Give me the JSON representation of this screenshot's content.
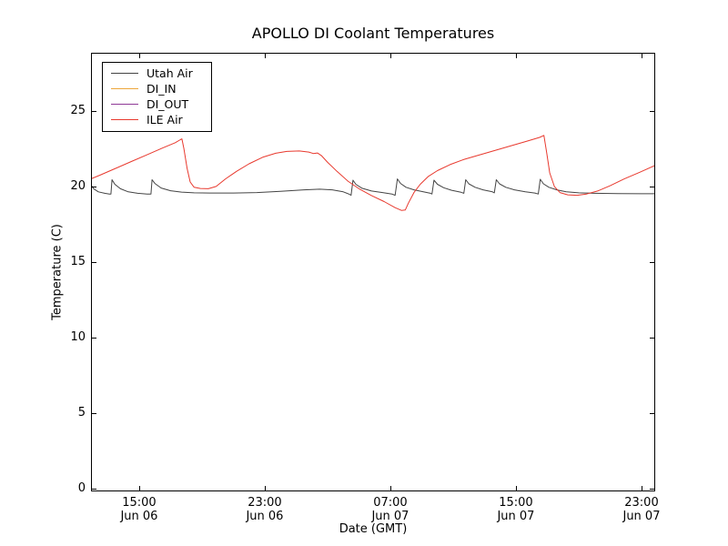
{
  "chart_data": {
    "type": "line",
    "title": "APOLLO DI Coolant Temperatures",
    "xlabel": "Date (GMT)",
    "ylabel": "Temperature (C)",
    "grid": false,
    "legend_position": "upper left",
    "frame_color": "#000000",
    "x_axis": {
      "unit": "hours since Jun 06 00:00 GMT",
      "range": [
        11.93,
        47.87
      ],
      "ticks": [
        {
          "t": 15,
          "time": "15:00",
          "date": "Jun 06"
        },
        {
          "t": 23,
          "time": "23:00",
          "date": "Jun 06"
        },
        {
          "t": 31,
          "time": "07:00",
          "date": "Jun 07"
        },
        {
          "t": 39,
          "time": "15:00",
          "date": "Jun 07"
        },
        {
          "t": 47,
          "time": "23:00",
          "date": "Jun 07"
        }
      ]
    },
    "y_axis": {
      "range": [
        -0.18,
        28.85
      ],
      "ticks": [
        {
          "v": 0,
          "label": "0"
        },
        {
          "v": 5,
          "label": "5"
        },
        {
          "v": 10,
          "label": "10"
        },
        {
          "v": 15,
          "label": "15"
        },
        {
          "v": 20,
          "label": "20"
        },
        {
          "v": 25,
          "label": "25"
        }
      ]
    },
    "series": [
      {
        "name": "Utah Air",
        "color": "#444444",
        "points": [
          [
            11.93,
            20.1
          ],
          [
            12.1,
            19.85
          ],
          [
            12.4,
            19.65
          ],
          [
            12.8,
            19.55
          ],
          [
            13.1,
            19.5
          ],
          [
            13.2,
            19.5
          ],
          [
            13.27,
            20.45
          ],
          [
            13.45,
            20.15
          ],
          [
            13.8,
            19.85
          ],
          [
            14.3,
            19.65
          ],
          [
            14.9,
            19.55
          ],
          [
            15.5,
            19.5
          ],
          [
            15.75,
            19.5
          ],
          [
            15.82,
            20.45
          ],
          [
            16.0,
            20.2
          ],
          [
            16.4,
            19.9
          ],
          [
            17.0,
            19.72
          ],
          [
            17.7,
            19.63
          ],
          [
            18.5,
            19.58
          ],
          [
            19.5,
            19.57
          ],
          [
            21.0,
            19.57
          ],
          [
            22.5,
            19.6
          ],
          [
            24.0,
            19.68
          ],
          [
            25.5,
            19.78
          ],
          [
            26.5,
            19.82
          ],
          [
            27.3,
            19.78
          ],
          [
            28.0,
            19.65
          ],
          [
            28.35,
            19.5
          ],
          [
            28.5,
            19.42
          ],
          [
            28.62,
            20.42
          ],
          [
            28.8,
            20.15
          ],
          [
            29.2,
            19.88
          ],
          [
            29.8,
            19.7
          ],
          [
            30.5,
            19.6
          ],
          [
            31.1,
            19.5
          ],
          [
            31.3,
            19.42
          ],
          [
            31.45,
            20.5
          ],
          [
            31.65,
            20.2
          ],
          [
            32.0,
            19.95
          ],
          [
            32.5,
            19.78
          ],
          [
            33.1,
            19.65
          ],
          [
            33.55,
            19.55
          ],
          [
            33.65,
            19.5
          ],
          [
            33.78,
            20.42
          ],
          [
            34.0,
            20.15
          ],
          [
            34.4,
            19.92
          ],
          [
            34.9,
            19.75
          ],
          [
            35.5,
            19.62
          ],
          [
            35.68,
            19.55
          ],
          [
            35.8,
            20.45
          ],
          [
            36.0,
            20.18
          ],
          [
            36.4,
            19.95
          ],
          [
            36.9,
            19.78
          ],
          [
            37.5,
            19.65
          ],
          [
            37.62,
            19.58
          ],
          [
            37.75,
            20.45
          ],
          [
            37.95,
            20.18
          ],
          [
            38.35,
            19.95
          ],
          [
            38.9,
            19.78
          ],
          [
            39.6,
            19.65
          ],
          [
            40.2,
            19.57
          ],
          [
            40.42,
            19.5
          ],
          [
            40.55,
            20.48
          ],
          [
            40.75,
            20.18
          ],
          [
            41.1,
            19.95
          ],
          [
            41.6,
            19.78
          ],
          [
            42.2,
            19.65
          ],
          [
            43.0,
            19.58
          ],
          [
            44.0,
            19.55
          ],
          [
            45.5,
            19.53
          ],
          [
            47.0,
            19.52
          ],
          [
            47.87,
            19.52
          ]
        ]
      },
      {
        "name": "DI_IN",
        "color": "#eda63b",
        "points": []
      },
      {
        "name": "DI_OUT",
        "color": "#8f3a96",
        "points": []
      },
      {
        "name": "ILE Air",
        "color": "#e8392e",
        "points": [
          [
            11.93,
            20.5
          ],
          [
            12.5,
            20.75
          ],
          [
            13.5,
            21.2
          ],
          [
            14.5,
            21.65
          ],
          [
            15.5,
            22.1
          ],
          [
            16.5,
            22.55
          ],
          [
            17.3,
            22.9
          ],
          [
            17.62,
            23.1
          ],
          [
            17.72,
            23.15
          ],
          [
            17.85,
            22.5
          ],
          [
            18.05,
            21.2
          ],
          [
            18.25,
            20.3
          ],
          [
            18.5,
            19.95
          ],
          [
            18.9,
            19.87
          ],
          [
            19.4,
            19.85
          ],
          [
            19.9,
            20.0
          ],
          [
            20.5,
            20.5
          ],
          [
            21.2,
            21.0
          ],
          [
            22.0,
            21.5
          ],
          [
            22.9,
            21.95
          ],
          [
            23.7,
            22.2
          ],
          [
            24.4,
            22.32
          ],
          [
            25.2,
            22.35
          ],
          [
            25.8,
            22.28
          ],
          [
            26.1,
            22.18
          ],
          [
            26.35,
            22.22
          ],
          [
            26.6,
            22.05
          ],
          [
            27.0,
            21.6
          ],
          [
            27.6,
            21.0
          ],
          [
            28.3,
            20.35
          ],
          [
            29.0,
            19.85
          ],
          [
            29.8,
            19.4
          ],
          [
            30.6,
            19.0
          ],
          [
            31.3,
            18.6
          ],
          [
            31.7,
            18.42
          ],
          [
            31.95,
            18.45
          ],
          [
            32.15,
            18.9
          ],
          [
            32.5,
            19.6
          ],
          [
            32.9,
            20.15
          ],
          [
            33.4,
            20.65
          ],
          [
            34.0,
            21.05
          ],
          [
            34.8,
            21.45
          ],
          [
            35.7,
            21.8
          ],
          [
            36.7,
            22.1
          ],
          [
            37.7,
            22.4
          ],
          [
            38.7,
            22.7
          ],
          [
            39.7,
            23.0
          ],
          [
            40.5,
            23.25
          ],
          [
            40.78,
            23.38
          ],
          [
            40.95,
            22.3
          ],
          [
            41.15,
            20.9
          ],
          [
            41.45,
            20.0
          ],
          [
            41.8,
            19.6
          ],
          [
            42.3,
            19.45
          ],
          [
            42.9,
            19.42
          ],
          [
            43.5,
            19.5
          ],
          [
            44.2,
            19.7
          ],
          [
            45.0,
            20.05
          ],
          [
            45.9,
            20.5
          ],
          [
            46.9,
            20.95
          ],
          [
            47.87,
            21.4
          ]
        ]
      }
    ]
  }
}
